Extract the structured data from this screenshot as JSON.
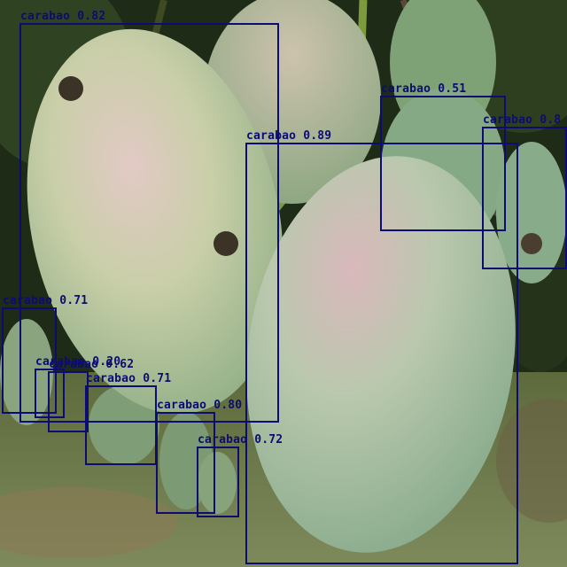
{
  "box_color": "#0c0c72",
  "detections": [
    {
      "label": "carabao",
      "score": "0.82"
    },
    {
      "label": "carabao",
      "score": "0.89"
    },
    {
      "label": "carabao",
      "score": "0.51"
    },
    {
      "label": "carabao",
      "score": "0.8"
    },
    {
      "label": "carabao",
      "score": "0.71"
    },
    {
      "label": "carabao",
      "score": "0.20"
    },
    {
      "label": "carabao",
      "score": "0.62"
    },
    {
      "label": "carabao",
      "score": "0.71"
    },
    {
      "label": "carabao",
      "score": "0.80"
    },
    {
      "label": "carabao",
      "score": "0.72"
    }
  ]
}
